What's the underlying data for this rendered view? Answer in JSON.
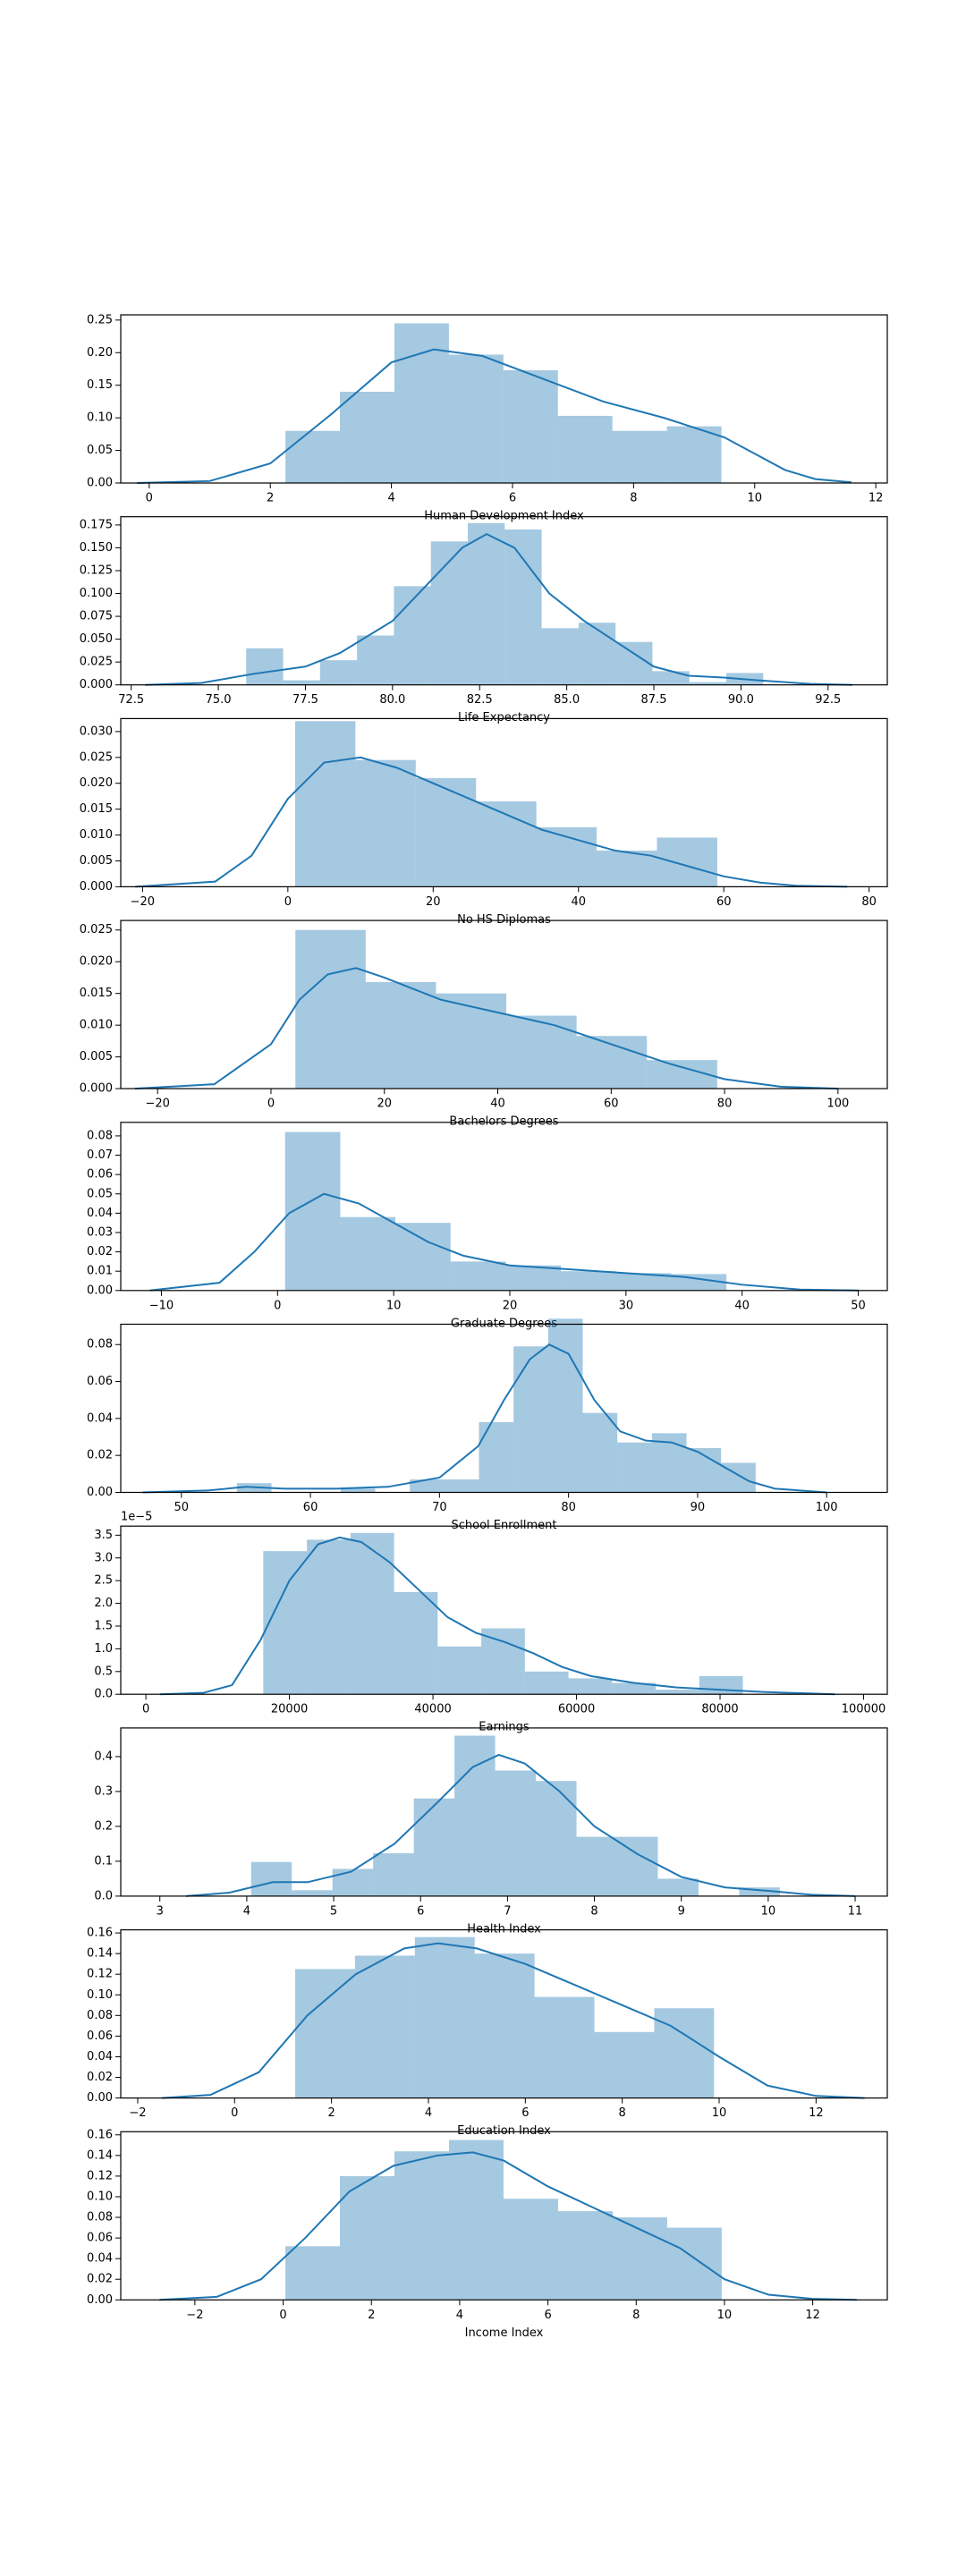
{
  "chart_data": [
    {
      "type": "histogram",
      "xlabel": "Human Development Index",
      "color": "#1f77b4",
      "bar_alpha": 0.4,
      "bins": [
        2.25,
        3.15,
        4.05,
        4.95,
        5.85,
        6.75,
        7.65,
        8.55,
        9.45
      ],
      "values": [
        0.08,
        0.14,
        0.245,
        0.197,
        0.173,
        0.103,
        0.08,
        0.087
      ],
      "kde": {
        "x": [
          -0.2,
          1,
          2,
          3,
          4,
          4.7,
          5.5,
          6.5,
          7.5,
          8.5,
          9.5,
          10,
          10.5,
          11,
          11.6
        ],
        "values": [
          0,
          0.003,
          0.03,
          0.105,
          0.185,
          0.205,
          0.195,
          0.16,
          0.125,
          0.1,
          0.07,
          0.045,
          0.02,
          0.006,
          0.001
        ]
      },
      "xlim": [
        -0.47,
        12.19
      ],
      "ylim": [
        0,
        0.258
      ],
      "xticks": [
        0,
        2,
        4,
        6,
        8,
        10,
        12
      ],
      "yticks": [
        {
          "value": 0,
          "label": "0.00"
        },
        0.05,
        {
          "value": 0.1,
          "label": "0.10"
        },
        0.15,
        {
          "value": 0.2,
          "label": "0.20"
        },
        0.25
      ]
    },
    {
      "type": "histogram",
      "xlabel": "Life Expectancy",
      "color": "#1f77b4",
      "bar_alpha": 0.4,
      "bins": [
        75.8,
        76.86,
        77.92,
        78.98,
        80.04,
        81.1,
        82.16,
        83.22,
        84.28,
        85.34,
        86.4,
        87.46,
        88.52,
        89.58,
        90.64
      ],
      "values": [
        0.04,
        0.005,
        0.027,
        0.054,
        0.108,
        0.157,
        0.177,
        0.17,
        0.062,
        0.068,
        0.047,
        0.015,
        0.003,
        0.013
      ],
      "kde": {
        "x": [
          72.9,
          74.5,
          76,
          77.5,
          78.5,
          80,
          81,
          82,
          82.7,
          83.5,
          84.5,
          85.5,
          86.5,
          87.5,
          88.5,
          89.5,
          90.5,
          92,
          93.2
        ],
        "values": [
          0,
          0.002,
          0.012,
          0.02,
          0.035,
          0.07,
          0.11,
          0.15,
          0.165,
          0.15,
          0.1,
          0.07,
          0.045,
          0.02,
          0.01,
          0.008,
          0.005,
          0.001,
          0
        ]
      },
      "xlim": [
        72.2,
        94.2
      ],
      "ylim": [
        0,
        0.184
      ],
      "xticks": [
        72.5,
        {
          "value": 75,
          "label": "75.0"
        },
        77.5,
        {
          "value": 80,
          "label": "80.0"
        },
        82.5,
        {
          "value": 85,
          "label": "85.0"
        },
        87.5,
        {
          "value": 90,
          "label": "90.0"
        },
        92.5
      ],
      "yticks": [
        {
          "value": 0,
          "label": "0.000"
        },
        0.025,
        {
          "value": 0.05,
          "label": "0.050"
        },
        0.075,
        {
          "value": 0.1,
          "label": "0.100"
        },
        0.125,
        {
          "value": 0.15,
          "label": "0.150"
        },
        0.175
      ]
    },
    {
      "type": "histogram",
      "xlabel": "No HS Diplomas",
      "color": "#1f77b4",
      "bar_alpha": 0.4,
      "bins": [
        1,
        9.3,
        17.6,
        25.9,
        34.2,
        42.5,
        50.8,
        59.1
      ],
      "values": [
        0.032,
        0.0245,
        0.021,
        0.0165,
        0.0115,
        0.007,
        0.0095
      ],
      "kde": {
        "x": [
          -21,
          -10,
          -5,
          0,
          5,
          10,
          15,
          20,
          25,
          30,
          35,
          40,
          45,
          50,
          55,
          60,
          65,
          70,
          77
        ],
        "values": [
          0,
          0.001,
          0.006,
          0.017,
          0.024,
          0.025,
          0.023,
          0.02,
          0.017,
          0.014,
          0.011,
          0.009,
          0.007,
          0.006,
          0.004,
          0.002,
          0.0008,
          0.0002,
          0
        ]
      },
      "xlim": [
        -23,
        82.5
      ],
      "ylim": [
        0,
        0.0325
      ],
      "xticks": [
        {
          "value": -20,
          "label": "−20"
        },
        0,
        20,
        40,
        60,
        80
      ],
      "yticks": [
        {
          "value": 0,
          "label": "0.000"
        },
        0.005,
        {
          "value": 0.01,
          "label": "0.010"
        },
        0.015,
        {
          "value": 0.02,
          "label": "0.020"
        },
        0.025,
        {
          "value": 0.03,
          "label": "0.030"
        }
      ]
    },
    {
      "type": "histogram",
      "xlabel": "Bachelors Degrees",
      "color": "#1f77b4",
      "bar_alpha": 0.4,
      "bins": [
        4.3,
        16.7,
        29.1,
        41.5,
        53.9,
        66.3,
        78.7
      ],
      "values": [
        0.025,
        0.0168,
        0.015,
        0.0115,
        0.0083,
        0.0045
      ],
      "kde": {
        "x": [
          -24,
          -10,
          0,
          5,
          10,
          15,
          20,
          30,
          40,
          50,
          60,
          70,
          80,
          90,
          100
        ],
        "values": [
          0,
          0.0007,
          0.007,
          0.014,
          0.018,
          0.019,
          0.0175,
          0.014,
          0.012,
          0.01,
          0.007,
          0.004,
          0.0015,
          0.0003,
          0
        ]
      },
      "xlim": [
        -26.5,
        108.7
      ],
      "ylim": [
        0,
        0.0265
      ],
      "xticks": [
        {
          "value": -20,
          "label": "−20"
        },
        0,
        20,
        40,
        60,
        80,
        100
      ],
      "yticks": [
        {
          "value": 0,
          "label": "0.000"
        },
        0.005,
        {
          "value": 0.01,
          "label": "0.010"
        },
        0.015,
        {
          "value": 0.02,
          "label": "0.020"
        },
        0.025
      ]
    },
    {
      "type": "histogram",
      "xlabel": "Graduate Degrees",
      "color": "#1f77b4",
      "bar_alpha": 0.4,
      "bins": [
        0.65,
        5.4,
        10.15,
        14.9,
        19.65,
        24.4,
        29.15,
        33.9,
        38.65
      ],
      "values": [
        0.082,
        0.038,
        0.035,
        0.015,
        0.013,
        0.01,
        0.009,
        0.0085
      ],
      "kde": {
        "x": [
          -11,
          -5,
          -2,
          1,
          4,
          7,
          10,
          13,
          16,
          20,
          25,
          30,
          35,
          40,
          45,
          50
        ],
        "values": [
          0,
          0.004,
          0.02,
          0.04,
          0.05,
          0.045,
          0.035,
          0.025,
          0.018,
          0.013,
          0.011,
          0.009,
          0.007,
          0.003,
          0.0005,
          0
        ]
      },
      "xlim": [
        -13.5,
        52.5
      ],
      "ylim": [
        0,
        0.087
      ],
      "xticks": [
        {
          "value": -10,
          "label": "−10"
        },
        0,
        10,
        20,
        30,
        40,
        50
      ],
      "yticks": [
        {
          "value": 0,
          "label": "0.00"
        },
        0.01,
        0.02,
        0.03,
        0.04,
        0.05,
        0.06,
        0.07,
        0.08
      ]
    },
    {
      "type": "histogram",
      "xlabel": "School Enrollment",
      "color": "#1f77b4",
      "bar_alpha": 0.4,
      "bins": [
        54.3,
        56.98,
        59.66,
        62.34,
        65.02,
        67.7,
        70.38,
        73.06,
        75.74,
        78.42,
        81.1,
        83.78,
        86.46,
        89.14,
        91.82,
        94.5
      ],
      "values": [
        0.005,
        0,
        0,
        0.002,
        0,
        0.007,
        0.007,
        0.038,
        0.079,
        0.094,
        0.043,
        0.027,
        0.032,
        0.024,
        0.016
      ],
      "kde": {
        "x": [
          47,
          52,
          55,
          58,
          62,
          66,
          70,
          73,
          75,
          77,
          78.5,
          80,
          82,
          84,
          86,
          88,
          90,
          92,
          94,
          96,
          100
        ],
        "values": [
          0,
          0.001,
          0.003,
          0.002,
          0.002,
          0.003,
          0.008,
          0.025,
          0.05,
          0.072,
          0.08,
          0.075,
          0.05,
          0.033,
          0.028,
          0.027,
          0.022,
          0.014,
          0.006,
          0.002,
          0
        ]
      },
      "xlim": [
        45.3,
        104.7
      ],
      "ylim": [
        0,
        0.091
      ],
      "xticks": [
        50,
        60,
        70,
        80,
        90,
        100
      ],
      "yticks": [
        {
          "value": 0,
          "label": "0.00"
        },
        0.02,
        0.04,
        0.06,
        0.08
      ]
    },
    {
      "type": "histogram",
      "xlabel": "Earnings",
      "y_offset_label": "1e−5",
      "color": "#1f77b4",
      "bar_alpha": 0.4,
      "bins": [
        16355,
        22430,
        28505,
        34580,
        40655,
        46730,
        52805,
        58880,
        64955,
        71030,
        77105,
        83180
      ],
      "values": [
        3.15e-05,
        3.4e-05,
        3.55e-05,
        2.25e-05,
        1.05e-05,
        1.45e-05,
        5e-06,
        3.5e-06,
        2.5e-06,
        1e-06,
        4e-06
      ],
      "kde": {
        "x": [
          2000,
          8000,
          12000,
          16000,
          20000,
          24000,
          27000,
          30000,
          34000,
          38000,
          42000,
          46000,
          50000,
          54000,
          58000,
          62000,
          68000,
          74000,
          80000,
          86000,
          96000
        ],
        "values": [
          0,
          3e-07,
          2e-06,
          1.2e-05,
          2.5e-05,
          3.3e-05,
          3.45e-05,
          3.35e-05,
          2.9e-05,
          2.3e-05,
          1.7e-05,
          1.35e-05,
          1.15e-05,
          9e-06,
          6e-06,
          4e-06,
          2.5e-06,
          1.5e-06,
          1e-06,
          5e-07,
          0
        ]
      },
      "xlim": [
        -3500,
        103300
      ],
      "ylim": [
        0,
        3.7e-05
      ],
      "xticks": [
        0,
        20000,
        40000,
        60000,
        80000,
        100000
      ],
      "yticks": [
        {
          "value": 0,
          "label": "0.0"
        },
        {
          "value": 5e-06,
          "label": "0.5"
        },
        {
          "value": 1e-05,
          "label": "1.0"
        },
        {
          "value": 1.5e-05,
          "label": "1.5"
        },
        {
          "value": 2e-05,
          "label": "2.0"
        },
        {
          "value": 2.5e-05,
          "label": "2.5"
        },
        {
          "value": 3e-05,
          "label": "3.0"
        },
        {
          "value": 3.5e-05,
          "label": "3.5"
        }
      ]
    },
    {
      "type": "histogram",
      "xlabel": "Health Index",
      "color": "#1f77b4",
      "bar_alpha": 0.4,
      "bins": [
        4.05,
        4.518,
        4.986,
        5.454,
        5.922,
        6.39,
        6.858,
        7.326,
        7.794,
        8.262,
        8.73,
        9.198,
        9.666,
        10.134
      ],
      "values": [
        0.098,
        0.017,
        0.078,
        0.123,
        0.28,
        0.46,
        0.36,
        0.33,
        0.17,
        0.17,
        0.05,
        0,
        0.025
      ],
      "kde": {
        "x": [
          3.3,
          3.8,
          4.3,
          4.7,
          5.2,
          5.7,
          6.2,
          6.6,
          6.9,
          7.2,
          7.6,
          8,
          8.5,
          9,
          9.5,
          10,
          10.5,
          11
        ],
        "values": [
          0,
          0.01,
          0.04,
          0.04,
          0.07,
          0.15,
          0.27,
          0.37,
          0.405,
          0.38,
          0.3,
          0.2,
          0.12,
          0.055,
          0.025,
          0.015,
          0.004,
          0
        ]
      },
      "xlim": [
        2.55,
        11.37
      ],
      "ylim": [
        0,
        0.482
      ],
      "xticks": [
        3,
        4,
        5,
        6,
        7,
        8,
        9,
        10,
        11
      ],
      "yticks": [
        {
          "value": 0,
          "label": "0.0"
        },
        0.1,
        0.2,
        0.3,
        0.4
      ]
    },
    {
      "type": "histogram",
      "xlabel": "Education Index",
      "color": "#1f77b4",
      "bar_alpha": 0.4,
      "bins": [
        1.25,
        2.485,
        3.72,
        4.955,
        6.19,
        7.425,
        8.66,
        9.895
      ],
      "values": [
        0.125,
        0.138,
        0.156,
        0.14,
        0.098,
        0.064,
        0.087
      ],
      "kde": {
        "x": [
          -1.5,
          -0.5,
          0.5,
          1.5,
          2.5,
          3.5,
          4.2,
          5,
          6,
          7,
          8,
          9,
          10,
          11,
          12,
          13
        ],
        "values": [
          0,
          0.003,
          0.025,
          0.08,
          0.12,
          0.145,
          0.15,
          0.145,
          0.13,
          0.11,
          0.09,
          0.07,
          0.04,
          0.012,
          0.002,
          0
        ]
      },
      "xlim": [
        -2.35,
        13.47
      ],
      "ylim": [
        0,
        0.163
      ],
      "xticks": [
        {
          "value": -2,
          "label": "−2"
        },
        0,
        2,
        4,
        6,
        8,
        10,
        12
      ],
      "yticks": [
        {
          "value": 0,
          "label": "0.00"
        },
        0.02,
        0.04,
        0.06,
        0.08,
        {
          "value": 0.1,
          "label": "0.10"
        },
        0.12,
        0.14,
        0.16
      ]
    },
    {
      "type": "histogram",
      "xlabel": "Income Index",
      "color": "#1f77b4",
      "bar_alpha": 0.4,
      "bins": [
        0.05,
        1.286,
        2.522,
        3.758,
        4.994,
        6.23,
        7.466,
        8.702,
        9.938
      ],
      "values": [
        0.052,
        0.12,
        0.144,
        0.155,
        0.098,
        0.086,
        0.08,
        0.07
      ],
      "kde": {
        "x": [
          -2.8,
          -1.5,
          -0.5,
          0.5,
          1.5,
          2.5,
          3.5,
          4.3,
          5,
          6,
          7,
          8,
          9,
          10,
          11,
          12,
          13
        ],
        "values": [
          0,
          0.003,
          0.02,
          0.06,
          0.105,
          0.13,
          0.14,
          0.143,
          0.135,
          0.11,
          0.09,
          0.07,
          0.05,
          0.02,
          0.005,
          0.001,
          0
        ]
      },
      "xlim": [
        -3.68,
        13.69
      ],
      "ylim": [
        0,
        0.163
      ],
      "xticks": [
        {
          "value": -2,
          "label": "−2"
        },
        0,
        2,
        4,
        6,
        8,
        10,
        12
      ],
      "yticks": [
        {
          "value": 0,
          "label": "0.00"
        },
        0.02,
        0.04,
        0.06,
        0.08,
        {
          "value": 0.1,
          "label": "0.10"
        },
        0.12,
        0.14,
        0.16
      ]
    }
  ]
}
